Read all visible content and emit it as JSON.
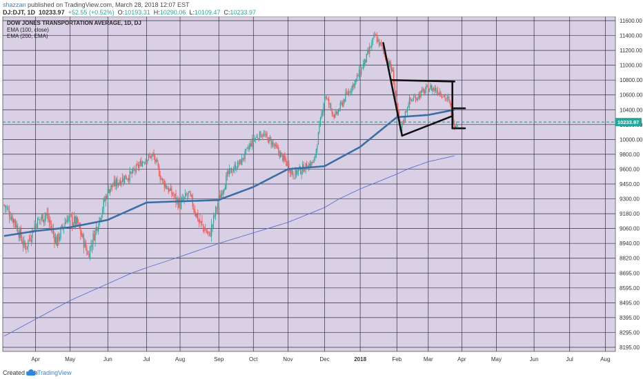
{
  "header": {
    "author": "shazzan",
    "published": " published on TradingView.com, March 28, 2018 12:07 EST",
    "symbol": "DJ:DJT, 1D",
    "last": "10233.97",
    "change": "+52.55 (+0.52%)",
    "o_label": "O:",
    "o_value": "10193.31",
    "h_label": "H:",
    "h_value": "10290.06",
    "l_label": "L:",
    "l_value": "10109.47",
    "c_label": "C:",
    "c_value": "10233.97"
  },
  "footer": {
    "created": "Created with",
    "brand": "TradingView"
  },
  "colors": {
    "background": "#d9d0e6",
    "grid": "#2f2f3a",
    "up": "#26a69a",
    "down": "#ef5350",
    "ema100": "#3a6ea5",
    "ema200": "#5a6fd0",
    "price_line": "#26a69a",
    "price_tag": "#26a69a"
  },
  "chart_data": {
    "type": "candlestick",
    "title": "DOW JONES TRANSPORTATION AVERAGE, 1D, DJ",
    "legend": [
      "EMA (100, close)",
      "EMA (200, EMA)"
    ],
    "y_ticks": [
      "11600.00",
      "11400.00",
      "11200.00",
      "11000.00",
      "10800.00",
      "10600.00",
      "10400.00",
      "10200.00",
      "10000.00",
      "9800.00",
      "9600.00",
      "9450.00",
      "9300.00",
      "9180.00",
      "9060.00",
      "8940.00",
      "8820.00",
      "8695.00",
      "8595.00",
      "8495.00",
      "8395.00",
      "8295.00",
      "8195.00"
    ],
    "y_tick_values": [
      11600,
      11400,
      11200,
      11000,
      10800,
      10600,
      10400,
      10200,
      10000,
      9800,
      9600,
      9450,
      9300,
      9180,
      9060,
      8940,
      8820,
      8695,
      8595,
      8495,
      8395,
      8295,
      8195
    ],
    "x_ticks": [
      "Apr",
      "May",
      "Jun",
      "Jul",
      "Aug",
      "Sep",
      "Oct",
      "Nov",
      "Dec",
      "2018",
      "Feb",
      "Mar",
      "Apr",
      "May",
      "Jun",
      "Jul",
      "Aug"
    ],
    "x_tick_index": [
      30,
      63,
      99,
      136,
      168,
      205,
      238,
      271,
      306,
      340,
      375,
      405,
      437,
      470,
      506,
      540,
      574
    ],
    "last_price": 10233.97,
    "last_price_label": "10233.97",
    "ema100_anchors": [
      [
        0,
        9000
      ],
      [
        30,
        9040
      ],
      [
        63,
        9070
      ],
      [
        99,
        9130
      ],
      [
        136,
        9270
      ],
      [
        168,
        9280
      ],
      [
        205,
        9290
      ],
      [
        238,
        9420
      ],
      [
        271,
        9600
      ],
      [
        306,
        9640
      ],
      [
        340,
        9900
      ],
      [
        375,
        10300
      ],
      [
        405,
        10330
      ],
      [
        430,
        10400
      ]
    ],
    "ema200_anchors": [
      [
        0,
        8270
      ],
      [
        63,
        8510
      ],
      [
        136,
        8740
      ],
      [
        205,
        8940
      ],
      [
        271,
        9110
      ],
      [
        306,
        9230
      ],
      [
        340,
        9400
      ],
      [
        375,
        9550
      ],
      [
        405,
        9700
      ],
      [
        430,
        9780
      ]
    ],
    "close_anchors": [
      [
        0,
        9250
      ],
      [
        10,
        9120
      ],
      [
        20,
        8900
      ],
      [
        30,
        9100
      ],
      [
        40,
        9180
      ],
      [
        50,
        8950
      ],
      [
        60,
        9150
      ],
      [
        70,
        9100
      ],
      [
        80,
        8850
      ],
      [
        90,
        9120
      ],
      [
        100,
        9400
      ],
      [
        112,
        9500
      ],
      [
        122,
        9550
      ],
      [
        132,
        9700
      ],
      [
        142,
        9790
      ],
      [
        150,
        9500
      ],
      [
        158,
        9380
      ],
      [
        168,
        9250
      ],
      [
        176,
        9350
      ],
      [
        186,
        9120
      ],
      [
        196,
        9000
      ],
      [
        205,
        9300
      ],
      [
        214,
        9550
      ],
      [
        226,
        9700
      ],
      [
        238,
        10000
      ],
      [
        246,
        10080
      ],
      [
        256,
        9950
      ],
      [
        266,
        9750
      ],
      [
        276,
        9550
      ],
      [
        286,
        9620
      ],
      [
        296,
        9700
      ],
      [
        306,
        10600
      ],
      [
        316,
        10300
      ],
      [
        326,
        10580
      ],
      [
        336,
        10800
      ],
      [
        346,
        11100
      ],
      [
        354,
        11400
      ],
      [
        362,
        11200
      ],
      [
        371,
        10900
      ],
      [
        378,
        10100
      ],
      [
        386,
        10500
      ],
      [
        396,
        10600
      ],
      [
        406,
        10700
      ],
      [
        416,
        10650
      ],
      [
        425,
        10500
      ],
      [
        430,
        10200
      ],
      [
        433,
        10234
      ]
    ],
    "annotations": [
      {
        "type": "trendline",
        "from": [
          362,
          11300
        ],
        "to": [
          380,
          10050
        ]
      },
      {
        "type": "trendline",
        "from": [
          370,
          10800
        ],
        "to": [
          430,
          10780
        ]
      },
      {
        "type": "trendline",
        "from": [
          380,
          10050
        ],
        "to": [
          427,
          10310
        ]
      },
      {
        "type": "trendline",
        "from": [
          428,
          10780
        ],
        "to": [
          428,
          10150
        ]
      },
      {
        "type": "trendline",
        "from": [
          428,
          10150
        ],
        "to": [
          440,
          10150
        ]
      },
      {
        "type": "trendline",
        "from": [
          428,
          10420
        ],
        "to": [
          440,
          10420
        ]
      }
    ]
  }
}
